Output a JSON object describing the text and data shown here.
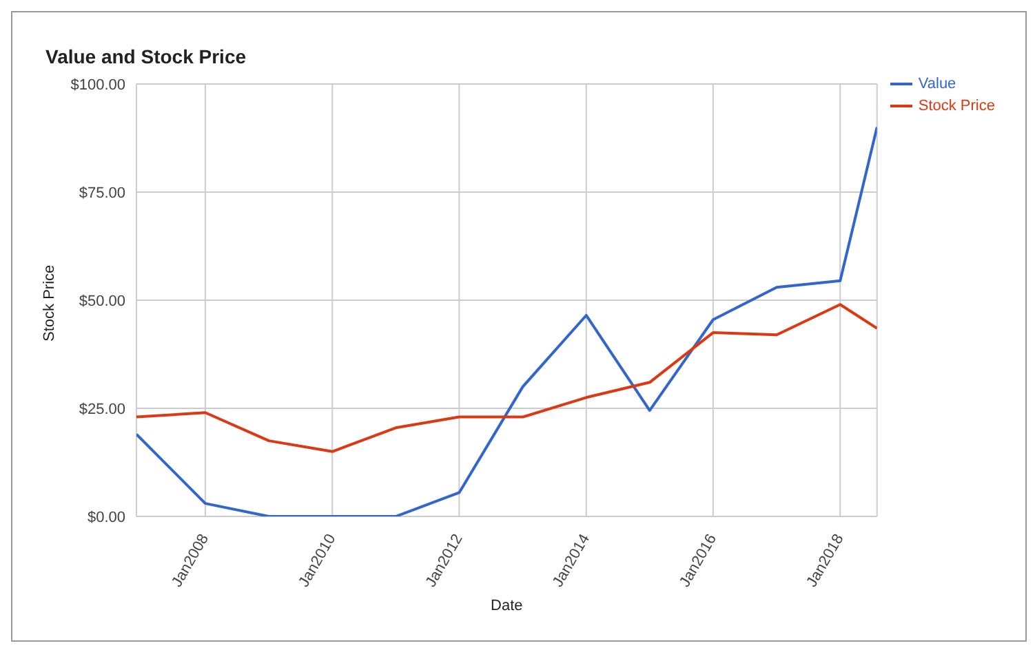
{
  "chart_data": {
    "type": "line",
    "title": "Value and Stock Price",
    "xlabel": "Date",
    "ylabel": "Stock Price",
    "x": [
      "2006-12",
      "2008-01",
      "2009-01",
      "2010-01",
      "2011-01",
      "2012-01",
      "2013-01",
      "2014-01",
      "2015-01",
      "2016-01",
      "2017-01",
      "2018-01",
      "2018-08"
    ],
    "series": [
      {
        "name": "Value",
        "color": "#3366cc",
        "values": [
          19,
          3,
          0,
          0,
          0,
          5.5,
          30,
          46.5,
          24.5,
          45.5,
          53,
          54.5,
          90
        ]
      },
      {
        "name": "Stock Price",
        "color": "#dc3912",
        "values": [
          23,
          24,
          17.5,
          15,
          20.5,
          23,
          23,
          27.5,
          31,
          42.5,
          42,
          49,
          43.5
        ]
      }
    ],
    "xlim": [
      "2006-12",
      "2018-08"
    ],
    "xticks": [
      {
        "value": "2008-01",
        "label": "Jan2008"
      },
      {
        "value": "2010-01",
        "label": "Jan2010"
      },
      {
        "value": "2012-01",
        "label": "Jan2012"
      },
      {
        "value": "2014-01",
        "label": "Jan2014"
      },
      {
        "value": "2016-01",
        "label": "Jan2016"
      },
      {
        "value": "2018-01",
        "label": "Jan2018"
      }
    ],
    "ylim": [
      0,
      100
    ],
    "yticks": [
      {
        "value": 0,
        "label": "$0.00"
      },
      {
        "value": 25,
        "label": "$25.00"
      },
      {
        "value": 50,
        "label": "$50.00"
      },
      {
        "value": 75,
        "label": "$75.00"
      },
      {
        "value": 100,
        "label": "$100.00"
      }
    ],
    "grid": true,
    "legend": "top right",
    "marker": "none",
    "line_style": "solid"
  }
}
